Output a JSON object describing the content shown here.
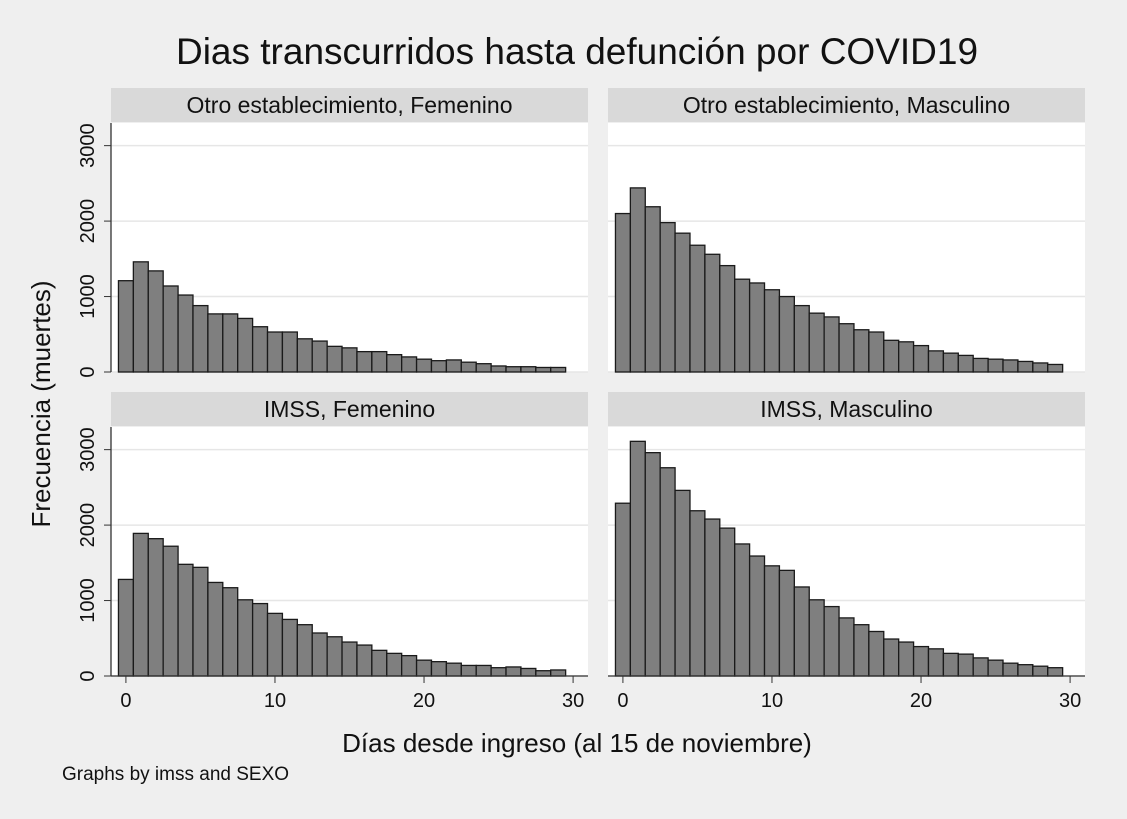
{
  "chart_data": {
    "type": "bar",
    "title": "Dias transcurridos hasta defunción por COVID19",
    "xlabel": "Días desde ingreso (al 15 de noviembre)",
    "ylabel": "Frecuencia (muertes)",
    "note": "Graphs by imss and SEXO",
    "xlim": [
      -1,
      31
    ],
    "ylim": [
      0,
      3300
    ],
    "xticks": [
      "0",
      "10",
      "20",
      "30"
    ],
    "yticks": [
      "0",
      "1000",
      "2000",
      "3000"
    ],
    "grid": true,
    "x": [
      0,
      1,
      2,
      3,
      4,
      5,
      6,
      7,
      8,
      9,
      10,
      11,
      12,
      13,
      14,
      15,
      16,
      17,
      18,
      19,
      20,
      21,
      22,
      23,
      24,
      25,
      26,
      27,
      28,
      29
    ],
    "panels": [
      {
        "label": "Otro establecimiento, Femenino",
        "values": [
          1210,
          1460,
          1340,
          1140,
          1020,
          880,
          770,
          770,
          710,
          600,
          530,
          530,
          440,
          410,
          340,
          320,
          270,
          270,
          230,
          200,
          170,
          150,
          160,
          130,
          110,
          80,
          70,
          70,
          60,
          60
        ]
      },
      {
        "label": "Otro establecimiento, Masculino",
        "values": [
          2100,
          2440,
          2190,
          1980,
          1840,
          1680,
          1560,
          1410,
          1230,
          1180,
          1090,
          1000,
          880,
          780,
          730,
          640,
          560,
          530,
          420,
          400,
          350,
          280,
          250,
          220,
          180,
          170,
          160,
          140,
          120,
          100
        ]
      },
      {
        "label": "IMSS, Femenino",
        "values": [
          1280,
          1890,
          1820,
          1720,
          1480,
          1440,
          1240,
          1170,
          1010,
          960,
          830,
          750,
          680,
          570,
          520,
          450,
          410,
          340,
          300,
          270,
          210,
          190,
          170,
          140,
          140,
          110,
          120,
          100,
          70,
          80
        ]
      },
      {
        "label": "IMSS, Masculino",
        "values": [
          2290,
          3110,
          2960,
          2760,
          2460,
          2190,
          2080,
          1960,
          1750,
          1590,
          1460,
          1400,
          1180,
          1010,
          920,
          770,
          680,
          590,
          490,
          450,
          390,
          360,
          300,
          290,
          240,
          210,
          170,
          150,
          130,
          110
        ]
      }
    ]
  }
}
